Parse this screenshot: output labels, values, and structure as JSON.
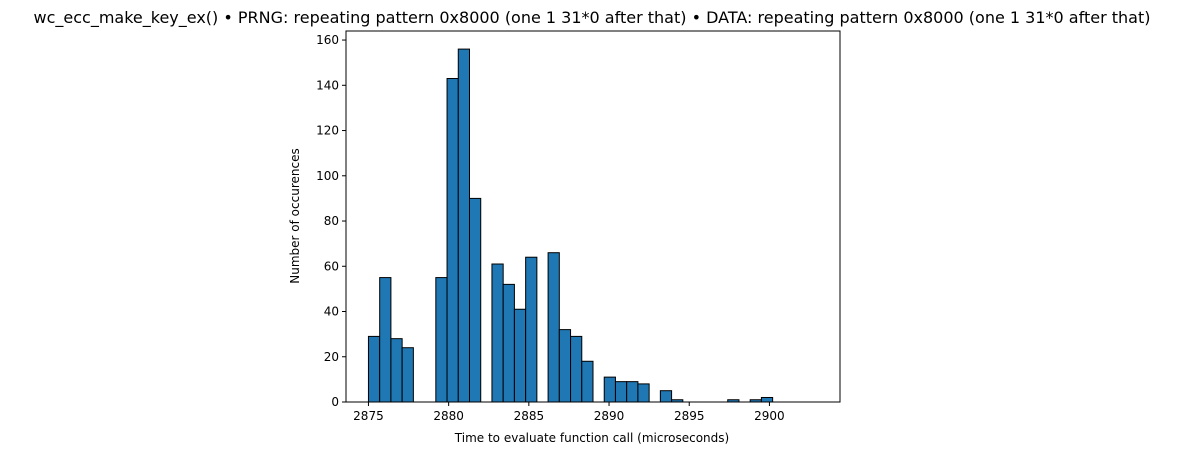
{
  "chart_data": {
    "type": "bar",
    "title": "wc_ecc_make_key_ex() • PRNG: repeating pattern 0x8000 (one 1 31*0 after that) • DATA: repeating pattern 0x8000 (one 1 31*0 after that)",
    "xlabel": "Time to evaluate function call (microseconds)",
    "ylabel": "Number of occurences",
    "xlim": [
      2873.6,
      2904.4
    ],
    "ylim": [
      0,
      164
    ],
    "xticks": [
      2875,
      2880,
      2885,
      2890,
      2895,
      2900
    ],
    "yticks": [
      0,
      20,
      40,
      60,
      80,
      100,
      120,
      140,
      160
    ],
    "bin_width": 0.7,
    "bins": [
      {
        "x": 2875.0,
        "value": 29
      },
      {
        "x": 2875.7,
        "value": 55
      },
      {
        "x": 2876.4,
        "value": 28
      },
      {
        "x": 2877.1,
        "value": 24
      },
      {
        "x": 2877.8,
        "value": 0
      },
      {
        "x": 2878.5,
        "value": 0
      },
      {
        "x": 2879.2,
        "value": 55
      },
      {
        "x": 2879.9,
        "value": 143
      },
      {
        "x": 2880.6,
        "value": 156
      },
      {
        "x": 2881.3,
        "value": 90
      },
      {
        "x": 2882.0,
        "value": 0
      },
      {
        "x": 2882.7,
        "value": 61
      },
      {
        "x": 2883.4,
        "value": 52
      },
      {
        "x": 2884.1,
        "value": 41
      },
      {
        "x": 2884.8,
        "value": 64
      },
      {
        "x": 2885.5,
        "value": 0
      },
      {
        "x": 2886.2,
        "value": 66
      },
      {
        "x": 2886.9,
        "value": 32
      },
      {
        "x": 2887.6,
        "value": 29
      },
      {
        "x": 2888.3,
        "value": 18
      },
      {
        "x": 2889.0,
        "value": 0
      },
      {
        "x": 2889.7,
        "value": 11
      },
      {
        "x": 2890.4,
        "value": 9
      },
      {
        "x": 2891.1,
        "value": 9
      },
      {
        "x": 2891.8,
        "value": 8
      },
      {
        "x": 2892.5,
        "value": 0
      },
      {
        "x": 2893.2,
        "value": 5
      },
      {
        "x": 2893.9,
        "value": 1
      },
      {
        "x": 2894.6,
        "value": 0
      },
      {
        "x": 2895.3,
        "value": 0
      },
      {
        "x": 2896.0,
        "value": 0
      },
      {
        "x": 2896.7,
        "value": 0
      },
      {
        "x": 2897.4,
        "value": 1
      },
      {
        "x": 2898.1,
        "value": 0
      },
      {
        "x": 2898.8,
        "value": 1
      },
      {
        "x": 2899.5,
        "value": 2
      }
    ],
    "bar_color": "#1f77b4",
    "edge_color": "#000000",
    "grid": false,
    "legend": "none"
  }
}
